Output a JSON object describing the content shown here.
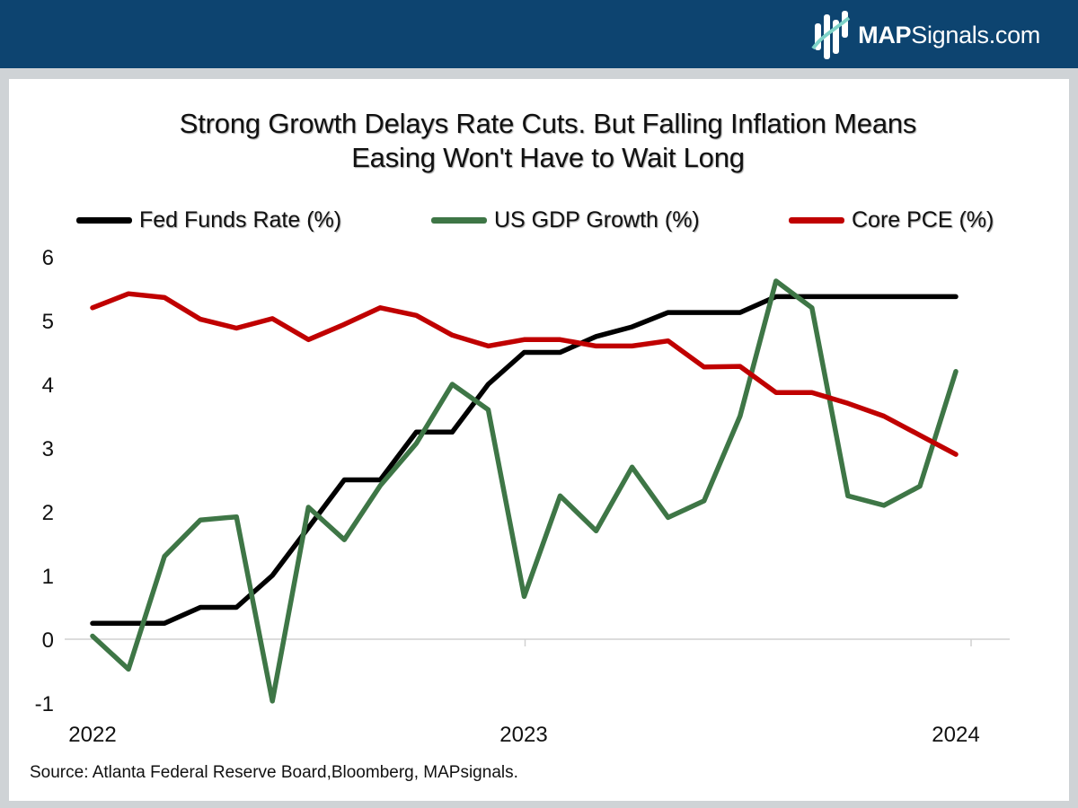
{
  "header": {
    "brand_bold": "MAP",
    "brand_rest": "Signals.com",
    "icon": "mapsignals-logo-icon"
  },
  "colors": {
    "header_bg": "#0d4470",
    "fed_funds": "#000000",
    "gdp": "#3e7646",
    "core_pce": "#c00000"
  },
  "chart_data": {
    "type": "line",
    "title_line1": "Strong Growth Delays Rate Cuts. But Falling Inflation Means",
    "title_line2": "Easing Won't Have to Wait Long",
    "xlabel": "",
    "ylabel": "",
    "ylim": [
      -1,
      6
    ],
    "yticks": [
      "6",
      "5",
      "4",
      "3",
      "2",
      "1",
      "0",
      "-1"
    ],
    "year_labels": [
      "2022",
      "2023",
      "2024"
    ],
    "grid": false,
    "legend_position": "top",
    "x_start": 2022.0,
    "x_step": 0.0833,
    "series": [
      {
        "name": "Fed Funds Rate (%)",
        "color": "#000000",
        "values": [
          0.25,
          0.25,
          0.25,
          0.5,
          0.5,
          1.0,
          1.75,
          2.5,
          2.5,
          3.25,
          3.25,
          4.0,
          4.5,
          4.5,
          4.75,
          4.9,
          5.125,
          5.125,
          5.125,
          5.375,
          5.375,
          5.375,
          5.375,
          5.375,
          5.375
        ]
      },
      {
        "name": "US GDP Growth (%)",
        "color": "#3e7646",
        "values": [
          0.05,
          -0.47,
          1.3,
          1.87,
          1.92,
          -0.97,
          2.07,
          1.56,
          2.41,
          3.07,
          4.0,
          3.6,
          0.67,
          2.25,
          1.7,
          2.7,
          1.91,
          2.17,
          3.5,
          5.62,
          5.2,
          2.25,
          2.1,
          2.4,
          4.2
        ]
      },
      {
        "name": "Core PCE (%)",
        "color": "#c00000",
        "values": [
          5.2,
          5.42,
          5.36,
          5.02,
          4.88,
          5.03,
          4.7,
          4.94,
          5.2,
          5.08,
          4.77,
          4.6,
          4.7,
          4.7,
          4.6,
          4.6,
          4.68,
          4.27,
          4.28,
          3.87,
          3.87,
          3.7,
          3.5,
          3.2,
          2.9
        ]
      }
    ]
  },
  "source": "Source: Atlanta Federal Reserve Board,Bloomberg, MAPsignals."
}
